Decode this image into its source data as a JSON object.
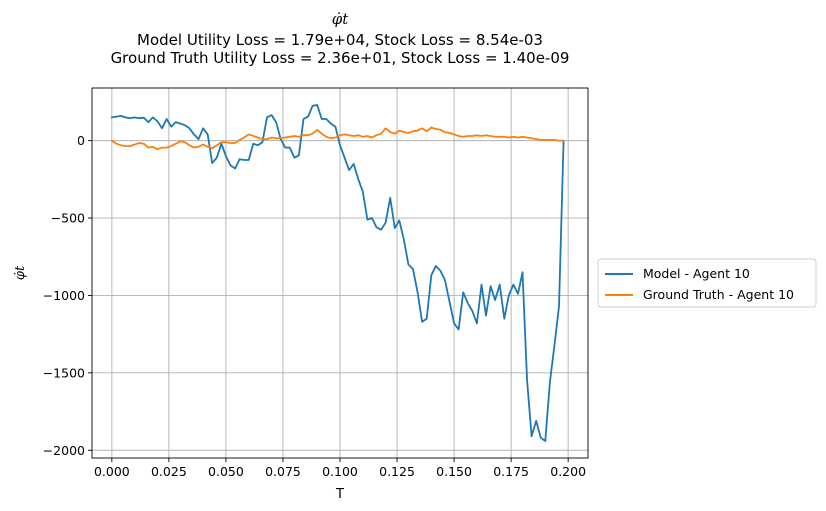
{
  "chart_data": {
    "type": "line",
    "title_math": "φ̇t",
    "title_lines": [
      "Model Utility Loss = 1.79e+04, Stock Loss = 8.54e-03",
      "Ground Truth Utility Loss = 2.36e+01, Stock Loss = 1.40e-09"
    ],
    "xlabel": "T",
    "ylabel": "φ̇t",
    "xlim": [
      -0.0087,
      0.2087
    ],
    "ylim": [
      -2050,
      340
    ],
    "xticks": [
      0.0,
      0.025,
      0.05,
      0.075,
      0.1,
      0.125,
      0.15,
      0.175,
      0.2
    ],
    "xtick_labels": [
      "0.000",
      "0.025",
      "0.050",
      "0.075",
      "0.100",
      "0.125",
      "0.150",
      "0.175",
      "0.200"
    ],
    "yticks": [
      0,
      -500,
      -1000,
      -1500,
      -2000
    ],
    "ytick_labels": [
      "0",
      "−500",
      "−1000",
      "−1500",
      "−2000"
    ],
    "grid": true,
    "legend_position": "outside-right",
    "series": [
      {
        "name": "Model - Agent 10",
        "color": "#1f77b4",
        "x": [
          0.0,
          0.002,
          0.004,
          0.006,
          0.008,
          0.01,
          0.012,
          0.014,
          0.016,
          0.018,
          0.02,
          0.022,
          0.024,
          0.026,
          0.028,
          0.03,
          0.032,
          0.034,
          0.036,
          0.038,
          0.04,
          0.042,
          0.044,
          0.046,
          0.048,
          0.05,
          0.052,
          0.054,
          0.056,
          0.058,
          0.06,
          0.062,
          0.064,
          0.066,
          0.068,
          0.07,
          0.072,
          0.074,
          0.076,
          0.078,
          0.08,
          0.082,
          0.084,
          0.086,
          0.088,
          0.09,
          0.092,
          0.094,
          0.096,
          0.098,
          0.1,
          0.102,
          0.104,
          0.106,
          0.108,
          0.11,
          0.112,
          0.114,
          0.116,
          0.118,
          0.12,
          0.122,
          0.124,
          0.126,
          0.128,
          0.13,
          0.132,
          0.134,
          0.136,
          0.138,
          0.14,
          0.142,
          0.144,
          0.146,
          0.148,
          0.15,
          0.152,
          0.154,
          0.156,
          0.158,
          0.16,
          0.162,
          0.164,
          0.166,
          0.168,
          0.17,
          0.172,
          0.174,
          0.176,
          0.178,
          0.18,
          0.182,
          0.184,
          0.186,
          0.188,
          0.19,
          0.192,
          0.194,
          0.196,
          0.198
        ],
        "y": [
          150,
          155,
          160,
          150,
          145,
          150,
          145,
          148,
          120,
          150,
          125,
          80,
          140,
          90,
          120,
          110,
          100,
          80,
          40,
          10,
          80,
          40,
          -145,
          -110,
          -20,
          -100,
          -160,
          -180,
          -120,
          -125,
          -125,
          -20,
          -30,
          -10,
          150,
          165,
          120,
          10,
          -45,
          -45,
          -110,
          -95,
          140,
          155,
          225,
          230,
          140,
          140,
          110,
          90,
          -30,
          -110,
          -190,
          -150,
          -250,
          -330,
          -510,
          -500,
          -560,
          -575,
          -530,
          -370,
          -565,
          -515,
          -640,
          -800,
          -830,
          -980,
          -1170,
          -1150,
          -870,
          -810,
          -840,
          -900,
          -1040,
          -1180,
          -1220,
          -980,
          -1050,
          -1100,
          -1180,
          -930,
          -1130,
          -940,
          -1030,
          -930,
          -1150,
          -1000,
          -930,
          -990,
          -850,
          -1550,
          -1910,
          -1810,
          -1920,
          -1940,
          -1560,
          -1320,
          -1070,
          0
        ]
      },
      {
        "name": "Ground Truth - Agent 10",
        "color": "#ff7f0e",
        "x": [
          0.0,
          0.002,
          0.004,
          0.006,
          0.008,
          0.01,
          0.012,
          0.014,
          0.016,
          0.018,
          0.02,
          0.022,
          0.024,
          0.026,
          0.028,
          0.03,
          0.032,
          0.034,
          0.036,
          0.038,
          0.04,
          0.042,
          0.044,
          0.046,
          0.048,
          0.05,
          0.052,
          0.054,
          0.056,
          0.058,
          0.06,
          0.062,
          0.064,
          0.066,
          0.068,
          0.07,
          0.072,
          0.074,
          0.076,
          0.078,
          0.08,
          0.082,
          0.084,
          0.086,
          0.088,
          0.09,
          0.092,
          0.094,
          0.096,
          0.098,
          0.1,
          0.102,
          0.104,
          0.106,
          0.108,
          0.11,
          0.112,
          0.114,
          0.116,
          0.118,
          0.12,
          0.122,
          0.124,
          0.126,
          0.128,
          0.13,
          0.132,
          0.134,
          0.136,
          0.138,
          0.14,
          0.142,
          0.144,
          0.146,
          0.148,
          0.15,
          0.152,
          0.154,
          0.156,
          0.158,
          0.16,
          0.162,
          0.164,
          0.166,
          0.168,
          0.17,
          0.172,
          0.174,
          0.176,
          0.178,
          0.18,
          0.182,
          0.184,
          0.186,
          0.188,
          0.19,
          0.192,
          0.194,
          0.196,
          0.198
        ],
        "y": [
          0,
          -20,
          -30,
          -35,
          -35,
          -25,
          -15,
          -20,
          -45,
          -40,
          -55,
          -45,
          -45,
          -35,
          -20,
          -5,
          -10,
          -30,
          -45,
          -40,
          -25,
          -40,
          -50,
          -30,
          -10,
          -10,
          -15,
          -15,
          5,
          20,
          40,
          30,
          20,
          10,
          10,
          20,
          15,
          15,
          20,
          25,
          30,
          25,
          35,
          35,
          45,
          70,
          45,
          25,
          15,
          20,
          35,
          40,
          35,
          30,
          35,
          25,
          30,
          20,
          35,
          45,
          80,
          55,
          45,
          65,
          55,
          50,
          60,
          65,
          80,
          60,
          85,
          75,
          70,
          55,
          50,
          40,
          30,
          25,
          30,
          30,
          35,
          30,
          35,
          30,
          25,
          25,
          25,
          20,
          25,
          20,
          25,
          20,
          15,
          10,
          5,
          5,
          5,
          5,
          0,
          0
        ]
      }
    ]
  }
}
